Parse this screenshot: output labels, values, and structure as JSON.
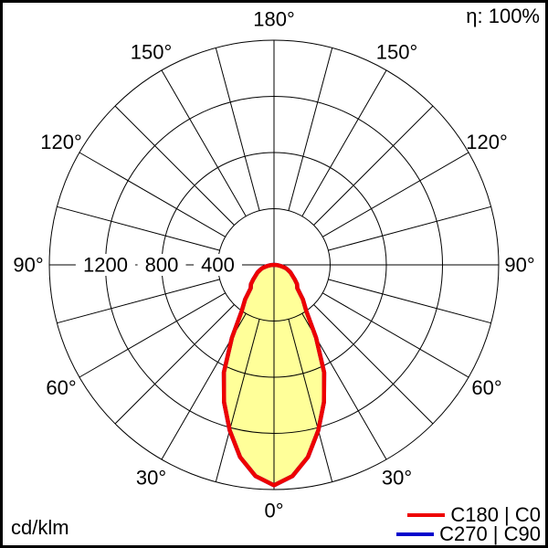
{
  "header": {
    "efficiency_label": "η: 100%"
  },
  "footer": {
    "units_label": "cd/klm"
  },
  "chart_data": {
    "type": "line",
    "polar": true,
    "units": "cd/klm",
    "efficiency_percent": 100,
    "radial_axis": {
      "tick_values": [
        400,
        800,
        1200
      ],
      "tick_labels": [
        "400",
        "800",
        "1200"
      ],
      "circle_values": [
        400,
        800,
        1200,
        1600
      ],
      "max": 1600
    },
    "angular_axis": {
      "tick_values": [
        0,
        30,
        60,
        90,
        120,
        150,
        180
      ],
      "tick_labels": [
        "0°",
        "30°",
        "60°",
        "90°",
        "120°",
        "150°",
        "180°"
      ],
      "grid_step_deg": 15,
      "zero_at": "bottom",
      "mirrored": true
    },
    "series": [
      {
        "name": "C180 | C0",
        "color": "#ee0000",
        "fill_color": "#ffff99",
        "gamma_deg": [
          0,
          5,
          10,
          15,
          20,
          25,
          30,
          35,
          40,
          45,
          50,
          55,
          60,
          65,
          70,
          75,
          80,
          85,
          90
        ],
        "values_cd_per_klm": [
          1570,
          1510,
          1390,
          1220,
          1040,
          845,
          600,
          400,
          320,
          235,
          215,
          180,
          150,
          130,
          105,
          85,
          50,
          25,
          0
        ]
      },
      {
        "name": "C270 | C90",
        "color": "#0000cc",
        "fill_color": "none",
        "gamma_deg": [
          0,
          5,
          10,
          15,
          20,
          25,
          30,
          35,
          40,
          45,
          50,
          55,
          60,
          65,
          70,
          75,
          80,
          85,
          90
        ],
        "values_cd_per_klm": [
          1570,
          1510,
          1390,
          1220,
          1040,
          845,
          600,
          400,
          320,
          235,
          215,
          180,
          150,
          130,
          105,
          85,
          50,
          25,
          0
        ]
      }
    ],
    "legend_position": "bottom-right",
    "grid_on": true
  }
}
